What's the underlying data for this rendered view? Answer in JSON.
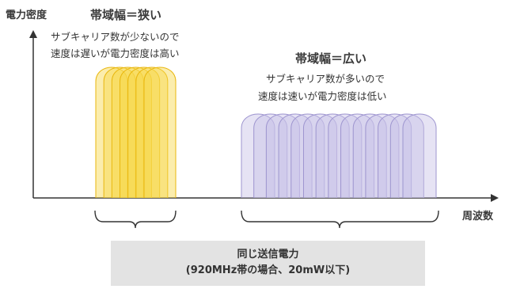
{
  "labels": {
    "y_axis": "電力密度",
    "x_axis": "周波数"
  },
  "narrow": {
    "title": "帯域幅＝狭い",
    "desc_line1": "サブキャリア数が少ないので",
    "desc_line2": "速度は遅いが電力密度は高い",
    "color_fill": "#f7d64a",
    "color_stroke": "#e9b70e",
    "subcarriers": 7
  },
  "wide": {
    "title": "帯域幅＝広い",
    "desc_line1": "サブキャリア数が多いので",
    "desc_line2": "速度は速いが電力密度は低い",
    "color_fill": "#c8c2e6",
    "color_stroke": "#9d94cf",
    "subcarriers": 14
  },
  "caption": {
    "line1": "同じ送信電力",
    "line2": "(920MHz帯の場合、20mW以下)"
  }
}
